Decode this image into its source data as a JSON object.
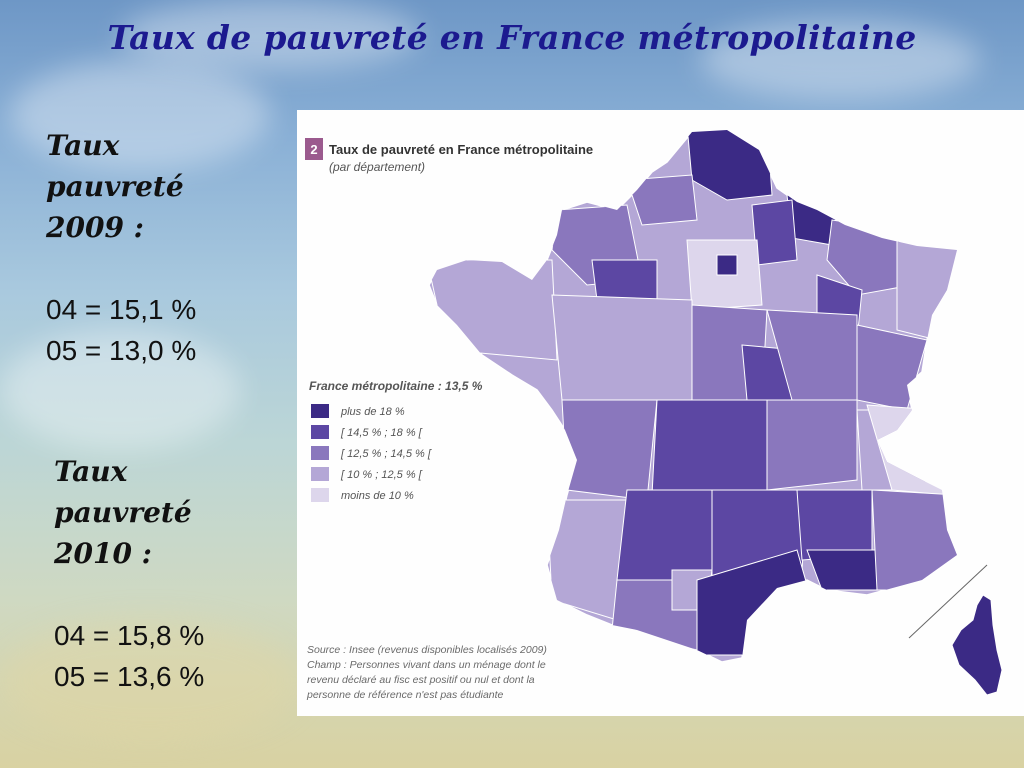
{
  "slide": {
    "title": "Taux de pauvreté en France métropolitaine"
  },
  "stats_2009": {
    "heading_line1": "Taux",
    "heading_line2": "pauvreté",
    "heading_line3": "2009 :",
    "line1": "04 = 15,1 %",
    "line2": "05 = 13,0 %"
  },
  "stats_2010": {
    "heading_line1": "Taux",
    "heading_line2": "pauvreté",
    "heading_line3": "2010 :",
    "line1": "04 = 15,8 %",
    "line2": "05 = 13,6 %"
  },
  "map": {
    "badge": "2",
    "title": "Taux de pauvreté en France métropolitaine",
    "subtitle": "(par département)",
    "national_rate": "France métropolitaine : 13,5 %",
    "legend": [
      {
        "label": "plus de 18 %",
        "color": "#3b2a85"
      },
      {
        "label": "[ 14,5 % ; 18 % [",
        "color": "#5c47a3"
      },
      {
        "label": "[ 12,5 % ; 14,5 % [",
        "color": "#8a77bd"
      },
      {
        "label": "[ 10 % ; 12,5 % [",
        "color": "#b4a7d6"
      },
      {
        "label": "moins de 10 %",
        "color": "#ddd6ec"
      }
    ],
    "source_line1": "Source : Insee (revenus disponibles localisés 2009)",
    "source_line2": "Champ : Personnes vivant dans un ménage dont le",
    "source_line3": "revenu déclaré au fisc est positif ou nul et dont la",
    "source_line4": "personne de référence n'est pas étudiante",
    "badge_color": "#9b5a8e"
  }
}
